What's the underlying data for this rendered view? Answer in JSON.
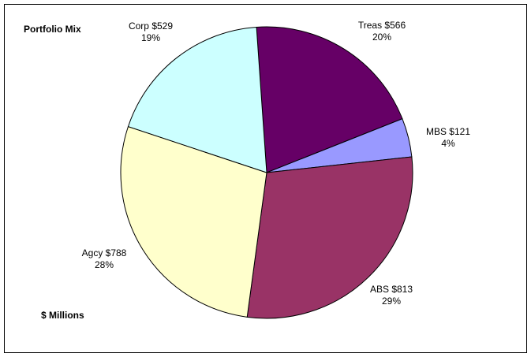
{
  "chart_data": {
    "type": "pie",
    "title": "Portfolio Mix",
    "unit_label": "$ Millions",
    "slices": [
      {
        "label": "Treas $566",
        "name": "Treas",
        "value": 566,
        "percent": "20%",
        "color": "#660066"
      },
      {
        "label": "MBS $121",
        "name": "MBS",
        "value": 121,
        "percent": "4%",
        "color": "#9999ff"
      },
      {
        "label": "ABS $813",
        "name": "ABS",
        "value": 813,
        "percent": "29%",
        "color": "#993366"
      },
      {
        "label": "Agcy $788",
        "name": "Agcy",
        "value": 788,
        "percent": "28%",
        "color": "#ffffcc"
      },
      {
        "label": "Corp $529",
        "name": "Corp",
        "value": 529,
        "percent": "19%",
        "color": "#ccffff"
      }
    ],
    "start_slice": "Treas",
    "direction": "clockwise",
    "legend": "none"
  }
}
